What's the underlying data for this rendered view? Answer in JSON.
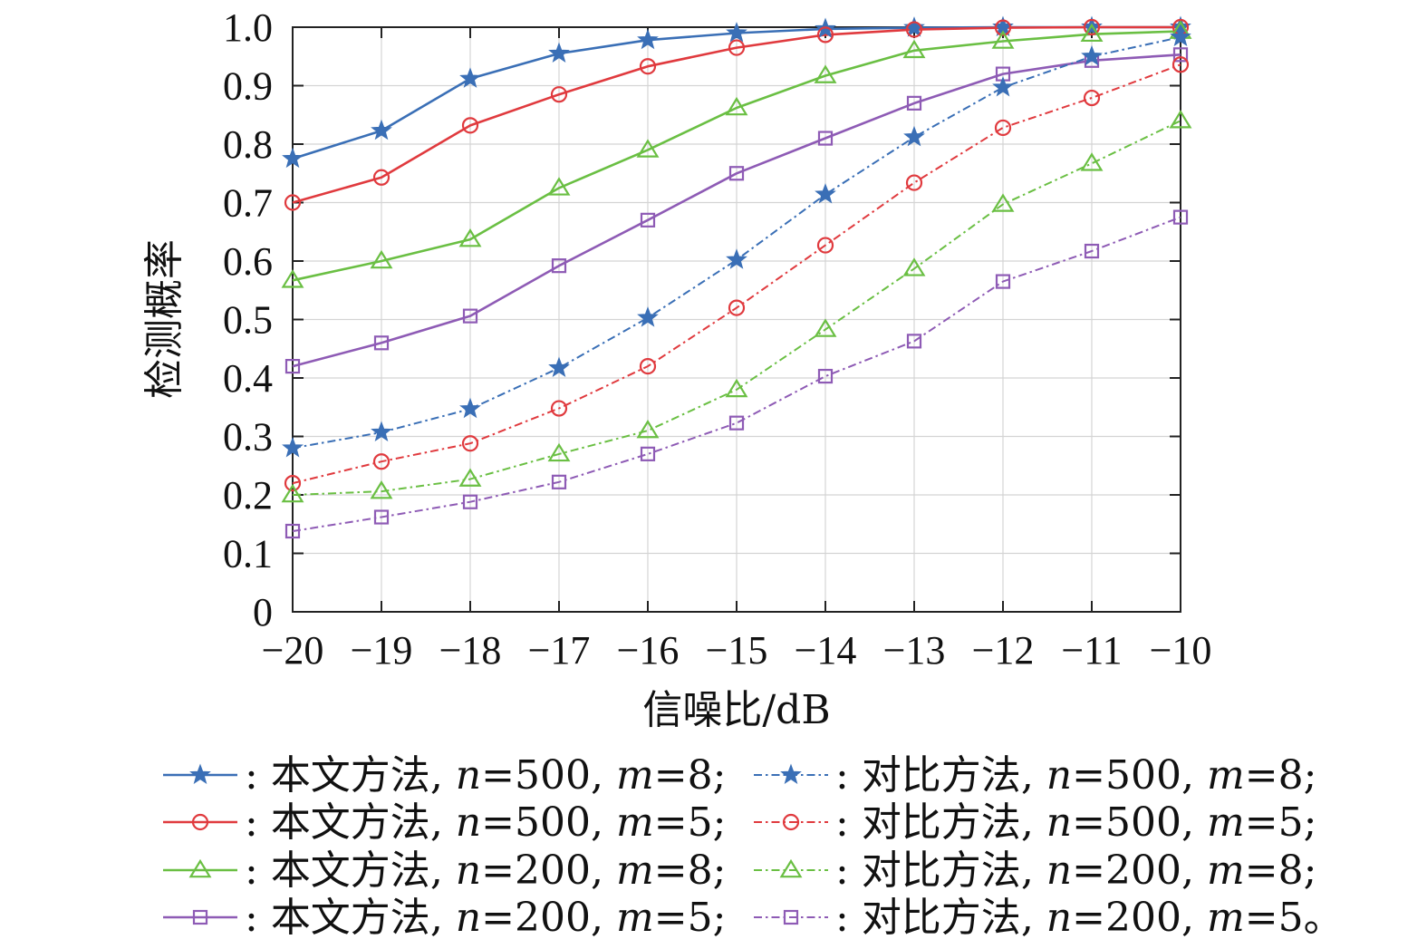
{
  "chart_data": {
    "type": "line",
    "xlabel": "信噪比/dB",
    "ylabel": "检测概率",
    "xlim": [
      -20,
      -10
    ],
    "ylim": [
      0,
      1
    ],
    "x": [
      -20,
      -19,
      -18,
      -17,
      -16,
      -15,
      -14,
      -13,
      -12,
      -11,
      -10
    ],
    "x_tick_labels": [
      "−20",
      "−19",
      "−18",
      "−17",
      "−16",
      "−15",
      "−14",
      "−13",
      "−12",
      "−11",
      "−10"
    ],
    "y_ticks": [
      0,
      0.1,
      0.2,
      0.3,
      0.4,
      0.5,
      0.6,
      0.7,
      0.8,
      0.9,
      1.0
    ],
    "y_tick_labels": [
      "0",
      "0.1",
      "0.2",
      "0.3",
      "0.4",
      "0.5",
      "0.6",
      "0.7",
      "0.8",
      "0.9",
      "1.0"
    ],
    "grid": true,
    "legend_position": "bottom",
    "series": [
      {
        "method": "本文方法",
        "n": "500",
        "m": "8",
        "end": ";",
        "color": "#3a6fb6",
        "marker": "star",
        "dash": false,
        "values": [
          0.775,
          0.823,
          0.912,
          0.955,
          0.978,
          0.99,
          0.997,
          0.999,
          1.0,
          1.0,
          1.0
        ]
      },
      {
        "method": "本文方法",
        "n": "500",
        "m": "5",
        "end": ";",
        "color": "#e03a3e",
        "marker": "circle",
        "dash": false,
        "values": [
          0.7,
          0.743,
          0.832,
          0.885,
          0.933,
          0.965,
          0.987,
          0.996,
          0.999,
          1.0,
          1.0
        ]
      },
      {
        "method": "本文方法",
        "n": "200",
        "m": "8",
        "end": ";",
        "color": "#6abf43",
        "marker": "triangle",
        "dash": false,
        "values": [
          0.567,
          0.6,
          0.637,
          0.725,
          0.79,
          0.862,
          0.917,
          0.96,
          0.976,
          0.988,
          0.993
        ]
      },
      {
        "method": "本文方法",
        "n": "200",
        "m": "5",
        "end": ";",
        "color": "#8e5bb5",
        "marker": "square",
        "dash": false,
        "values": [
          0.42,
          0.46,
          0.506,
          0.592,
          0.67,
          0.75,
          0.81,
          0.87,
          0.92,
          0.943,
          0.953
        ]
      },
      {
        "method": "对比方法",
        "n": "500",
        "m": "8",
        "end": ";",
        "color": "#3a6fb6",
        "marker": "star",
        "dash": true,
        "values": [
          0.28,
          0.307,
          0.347,
          0.417,
          0.503,
          0.602,
          0.714,
          0.812,
          0.897,
          0.95,
          0.983
        ]
      },
      {
        "method": "对比方法",
        "n": "500",
        "m": "5",
        "end": ";",
        "color": "#e03a3e",
        "marker": "circle",
        "dash": true,
        "values": [
          0.22,
          0.257,
          0.288,
          0.348,
          0.42,
          0.52,
          0.627,
          0.734,
          0.828,
          0.879,
          0.936
        ]
      },
      {
        "method": "对比方法",
        "n": "200",
        "m": "8",
        "end": ";",
        "color": "#6abf43",
        "marker": "triangle",
        "dash": true,
        "values": [
          0.2,
          0.206,
          0.227,
          0.27,
          0.31,
          0.38,
          0.483,
          0.587,
          0.697,
          0.767,
          0.84
        ]
      },
      {
        "method": "对比方法",
        "n": "200",
        "m": "5",
        "end": "。",
        "color": "#8e5bb5",
        "marker": "square",
        "dash": true,
        "values": [
          0.138,
          0.162,
          0.188,
          0.222,
          0.27,
          0.323,
          0.403,
          0.463,
          0.565,
          0.617,
          0.675
        ]
      }
    ]
  }
}
